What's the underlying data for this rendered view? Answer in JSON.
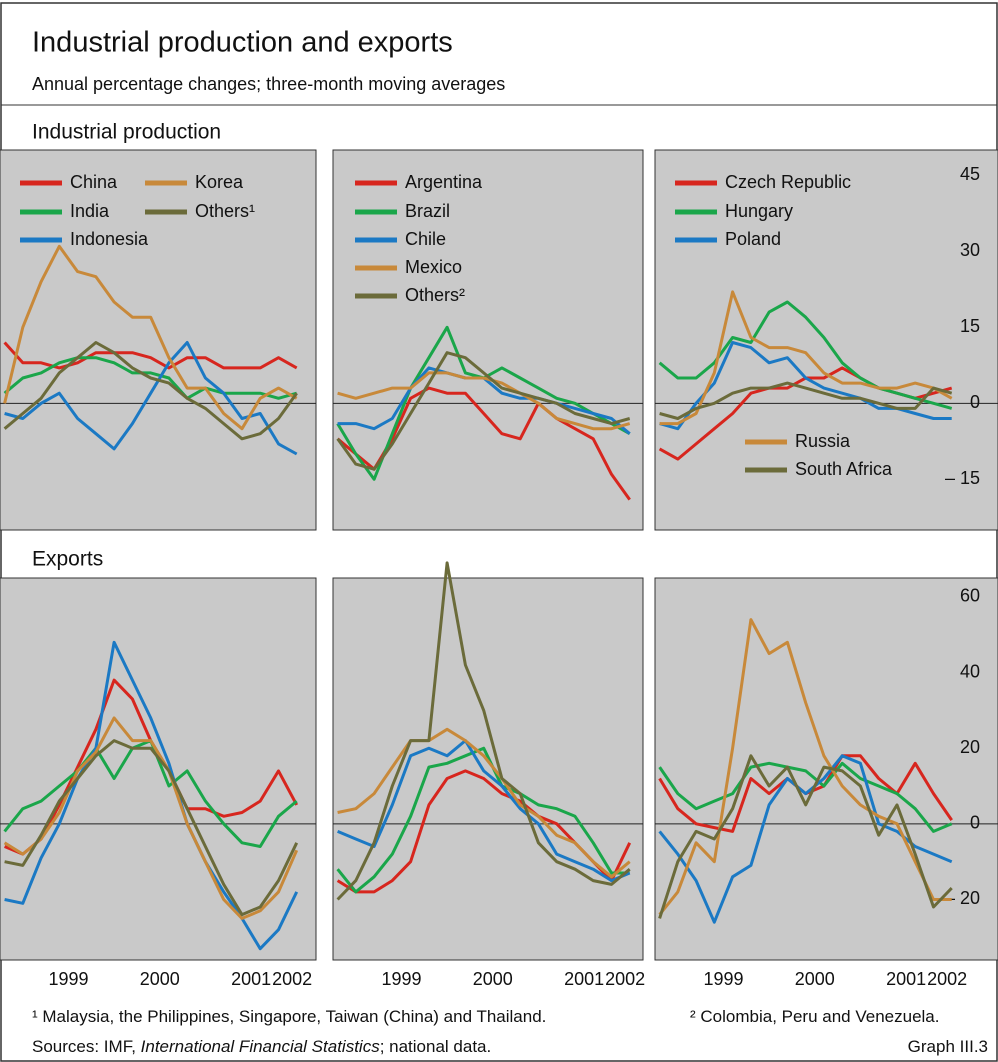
{
  "title": "Industrial production and exports",
  "subtitle": "Annual percentage changes; three-month moving averages",
  "sections": [
    "Industrial production",
    "Exports"
  ],
  "footnotes": [
    "¹ Malaysia, the Philippines, Singapore, Taiwan (China) and Thailand.",
    "² Colombia, Peru and Venezuela."
  ],
  "sources": [
    "Sources: IMF, ",
    "International Financial Statistics",
    "; national data."
  ],
  "graph_label": "Graph III.3",
  "chart_data": [
    {
      "type": "line",
      "legend": true,
      "xlim": [
        1998.75,
        2002.2
      ],
      "ylim": [
        -25,
        50
      ],
      "x": [
        1998.8,
        1999.0,
        1999.2,
        1999.4,
        1999.6,
        1999.8,
        2000.0,
        2000.2,
        2000.4,
        2000.6,
        2000.8,
        2001.0,
        2001.2,
        2001.4,
        2001.6,
        2001.8,
        2002.0
      ],
      "series": [
        {
          "name": "China",
          "color": "#d7261e",
          "values": [
            12,
            8,
            8,
            7,
            8,
            10,
            10,
            10,
            9,
            7,
            9,
            9,
            7,
            7,
            7,
            9,
            7
          ]
        },
        {
          "name": "India",
          "color": "#1aa64a",
          "values": [
            2,
            5,
            6,
            8,
            9,
            9,
            8,
            6,
            6,
            5,
            1,
            3,
            2,
            2,
            2,
            1,
            2
          ]
        },
        {
          "name": "Indonesia",
          "color": "#1b79c4",
          "values": [
            -2,
            -3,
            0,
            2,
            -3,
            -6,
            -9,
            -4,
            2,
            8,
            12,
            5,
            2,
            -3,
            -2,
            -8,
            -10
          ]
        },
        {
          "name": "Korea",
          "color": "#c8893a",
          "values": [
            0,
            15,
            24,
            31,
            26,
            25,
            20,
            17,
            17,
            9,
            3,
            3,
            -2,
            -5,
            1,
            3,
            1
          ]
        },
        {
          "name": "Others¹",
          "color": "#6b6b3a",
          "values": [
            -5,
            -2,
            1,
            6,
            9,
            12,
            10,
            7,
            5,
            4,
            1,
            -1,
            -4,
            -7,
            -6,
            -3,
            2
          ]
        }
      ]
    },
    {
      "type": "line",
      "legend": true,
      "xlim": [
        1998.75,
        2002.2
      ],
      "ylim": [
        -25,
        50
      ],
      "x": [
        1998.8,
        1999.0,
        1999.2,
        1999.4,
        1999.6,
        1999.8,
        2000.0,
        2000.2,
        2000.4,
        2000.6,
        2000.8,
        2001.0,
        2001.2,
        2001.4,
        2001.6,
        2001.8,
        2002.0
      ],
      "series": [
        {
          "name": "Argentina",
          "color": "#d7261e",
          "values": [
            -7,
            -10,
            -13,
            -7,
            1,
            3,
            2,
            2,
            -2,
            -6,
            -7,
            0,
            -3,
            -5,
            -7,
            -14,
            -19
          ]
        },
        {
          "name": "Brazil",
          "color": "#1aa64a",
          "values": [
            -4,
            -10,
            -15,
            -6,
            3,
            9,
            15,
            6,
            5,
            7,
            5,
            3,
            1,
            0,
            -2,
            -4,
            -6
          ]
        },
        {
          "name": "Chile",
          "color": "#1b79c4",
          "values": [
            -4,
            -4,
            -5,
            -3,
            3,
            7,
            6,
            5,
            5,
            2,
            1,
            1,
            0,
            -1,
            -2,
            -3,
            -6
          ]
        },
        {
          "name": "Mexico",
          "color": "#c8893a",
          "values": [
            2,
            1,
            2,
            3,
            3,
            6,
            6,
            5,
            5,
            4,
            2,
            0,
            -3,
            -4,
            -5,
            -5,
            -4
          ]
        },
        {
          "name": "Others²",
          "color": "#6b6b3a",
          "values": [
            -7,
            -12,
            -13,
            -8,
            -2,
            4,
            10,
            9,
            6,
            3,
            2,
            1,
            0,
            -2,
            -3,
            -4,
            -3
          ]
        }
      ]
    },
    {
      "type": "line",
      "legend": true,
      "xlim": [
        1998.75,
        2002.2
      ],
      "ylim": [
        -25,
        50
      ],
      "yticks": [
        {
          "value": 45,
          "label": "45"
        },
        {
          "value": 30,
          "label": "30"
        },
        {
          "value": 15,
          "label": "15"
        },
        {
          "value": 0,
          "label": "0"
        },
        {
          "value": -15,
          "label": "– 15"
        }
      ],
      "x": [
        1998.8,
        1999.0,
        1999.2,
        1999.4,
        1999.6,
        1999.8,
        2000.0,
        2000.2,
        2000.4,
        2000.6,
        2000.8,
        2001.0,
        2001.2,
        2001.4,
        2001.6,
        2001.8,
        2002.0
      ],
      "series": [
        {
          "name": "Czech Republic",
          "color": "#d7261e",
          "values": [
            -9,
            -11,
            -8,
            -5,
            -2,
            2,
            3,
            3,
            5,
            5,
            7,
            5,
            3,
            2,
            1,
            2,
            3
          ]
        },
        {
          "name": "Hungary",
          "color": "#1aa64a",
          "values": [
            8,
            5,
            5,
            8,
            13,
            12,
            18,
            20,
            17,
            13,
            8,
            5,
            3,
            2,
            1,
            0,
            -1
          ]
        },
        {
          "name": "Poland",
          "color": "#1b79c4",
          "values": [
            -4,
            -5,
            0,
            4,
            12,
            11,
            8,
            9,
            5,
            3,
            2,
            1,
            -1,
            -1,
            -2,
            -3,
            -3
          ]
        },
        {
          "name": "Russia",
          "color": "#c8893a",
          "values": [
            -4,
            -4,
            -2,
            6,
            22,
            13,
            11,
            11,
            10,
            6,
            4,
            4,
            3,
            3,
            4,
            3,
            1
          ]
        },
        {
          "name": "South Africa",
          "color": "#6b6b3a",
          "values": [
            -2,
            -3,
            -1,
            0,
            2,
            3,
            3,
            4,
            3,
            2,
            1,
            1,
            0,
            -1,
            -1,
            3,
            2
          ]
        }
      ]
    },
    {
      "type": "line",
      "xlim": [
        1998.75,
        2002.2
      ],
      "ylim": [
        -36,
        65
      ],
      "xticks": [
        {
          "value": 1999.5,
          "label": "1999"
        },
        {
          "value": 2000.5,
          "label": "2000"
        },
        {
          "value": 2001.5,
          "label": "2001"
        },
        {
          "value": 2001.95,
          "label": "2002"
        }
      ],
      "x": [
        1998.8,
        1999.0,
        1999.2,
        1999.4,
        1999.6,
        1999.8,
        2000.0,
        2000.2,
        2000.4,
        2000.6,
        2000.8,
        2001.0,
        2001.2,
        2001.4,
        2001.6,
        2001.8,
        2002.0
      ],
      "series": [
        {
          "name": "China",
          "color": "#d7261e",
          "values": [
            -6,
            -8,
            -4,
            5,
            15,
            25,
            38,
            33,
            22,
            14,
            4,
            4,
            2,
            3,
            6,
            14,
            5
          ]
        },
        {
          "name": "India",
          "color": "#1aa64a",
          "values": [
            -2,
            4,
            6,
            10,
            14,
            20,
            12,
            20,
            22,
            10,
            14,
            6,
            0,
            -5,
            -6,
            2,
            6
          ]
        },
        {
          "name": "Indonesia",
          "color": "#1b79c4",
          "values": [
            -20,
            -21,
            -9,
            0,
            12,
            20,
            48,
            38,
            28,
            16,
            0,
            -10,
            -18,
            -25,
            -33,
            -28,
            -18
          ]
        },
        {
          "name": "Korea",
          "color": "#c8893a",
          "values": [
            -5,
            -8,
            -4,
            3,
            14,
            19,
            28,
            22,
            22,
            14,
            0,
            -10,
            -20,
            -25,
            -23,
            -18,
            -7
          ]
        },
        {
          "name": "Others¹",
          "color": "#6b6b3a",
          "values": [
            -10,
            -11,
            -3,
            6,
            12,
            18,
            22,
            20,
            20,
            14,
            4,
            -6,
            -16,
            -24,
            -22,
            -15,
            -5
          ]
        }
      ]
    },
    {
      "type": "line",
      "xlim": [
        1998.75,
        2002.2
      ],
      "ylim": [
        -36,
        65
      ],
      "xticks": [
        {
          "value": 1999.5,
          "label": "1999"
        },
        {
          "value": 2000.5,
          "label": "2000"
        },
        {
          "value": 2001.5,
          "label": "2001"
        },
        {
          "value": 2001.95,
          "label": "2002"
        }
      ],
      "x": [
        1998.8,
        1999.0,
        1999.2,
        1999.4,
        1999.6,
        1999.8,
        2000.0,
        2000.2,
        2000.4,
        2000.6,
        2000.8,
        2001.0,
        2001.2,
        2001.4,
        2001.6,
        2001.8,
        2002.0
      ],
      "series": [
        {
          "name": "Argentina",
          "color": "#d7261e",
          "values": [
            -15,
            -18,
            -18,
            -15,
            -10,
            5,
            12,
            14,
            12,
            8,
            6,
            2,
            0,
            -5,
            -10,
            -15,
            -5
          ]
        },
        {
          "name": "Brazil",
          "color": "#1aa64a",
          "values": [
            -12,
            -18,
            -14,
            -8,
            2,
            15,
            16,
            18,
            20,
            10,
            8,
            5,
            4,
            2,
            -5,
            -13,
            -13
          ]
        },
        {
          "name": "Chile",
          "color": "#1b79c4",
          "values": [
            -2,
            -4,
            -6,
            5,
            18,
            20,
            18,
            22,
            14,
            10,
            4,
            0,
            -8,
            -10,
            -12,
            -15,
            -13
          ]
        },
        {
          "name": "Mexico",
          "color": "#c8893a",
          "values": [
            3,
            4,
            8,
            15,
            22,
            22,
            25,
            22,
            18,
            12,
            5,
            2,
            -3,
            -5,
            -10,
            -14,
            -10
          ]
        },
        {
          "name": "Others²",
          "color": "#6b6b3a",
          "values": [
            -20,
            -15,
            -5,
            10,
            22,
            22,
            69,
            42,
            30,
            12,
            8,
            -5,
            -10,
            -12,
            -15,
            -16,
            -12
          ]
        }
      ]
    },
    {
      "type": "line",
      "xlim": [
        1998.75,
        2002.2
      ],
      "ylim": [
        -36,
        65
      ],
      "yticks": [
        {
          "value": 60,
          "label": "60"
        },
        {
          "value": 40,
          "label": "40"
        },
        {
          "value": 20,
          "label": "20"
        },
        {
          "value": 0,
          "label": "0"
        },
        {
          "value": -20,
          "label": "– 20"
        }
      ],
      "xticks": [
        {
          "value": 1999.5,
          "label": "1999"
        },
        {
          "value": 2000.5,
          "label": "2000"
        },
        {
          "value": 2001.5,
          "label": "2001"
        },
        {
          "value": 2001.95,
          "label": "2002"
        }
      ],
      "x": [
        1998.8,
        1999.0,
        1999.2,
        1999.4,
        1999.6,
        1999.8,
        2000.0,
        2000.2,
        2000.4,
        2000.6,
        2000.8,
        2001.0,
        2001.2,
        2001.4,
        2001.6,
        2001.8,
        2002.0
      ],
      "series": [
        {
          "name": "Czech Republic",
          "color": "#d7261e",
          "values": [
            12,
            4,
            0,
            -1,
            -2,
            12,
            8,
            12,
            8,
            10,
            18,
            18,
            12,
            8,
            16,
            8,
            1
          ]
        },
        {
          "name": "Hungary",
          "color": "#1aa64a",
          "values": [
            15,
            8,
            4,
            6,
            8,
            15,
            16,
            15,
            14,
            10,
            16,
            12,
            10,
            8,
            4,
            -2,
            0
          ]
        },
        {
          "name": "Poland",
          "color": "#1b79c4",
          "values": [
            -2,
            -8,
            -15,
            -26,
            -14,
            -11,
            5,
            12,
            8,
            12,
            18,
            16,
            0,
            -2,
            -6,
            -8,
            -10
          ]
        },
        {
          "name": "Russia",
          "color": "#c8893a",
          "values": [
            -24,
            -18,
            -5,
            -10,
            20,
            54,
            45,
            48,
            32,
            18,
            10,
            5,
            2,
            0,
            -10,
            -20,
            -20
          ]
        },
        {
          "name": "South Africa",
          "color": "#6b6b3a",
          "values": [
            -25,
            -10,
            -2,
            -4,
            4,
            18,
            10,
            15,
            5,
            15,
            14,
            10,
            -3,
            5,
            -8,
            -22,
            -17
          ]
        }
      ]
    }
  ]
}
